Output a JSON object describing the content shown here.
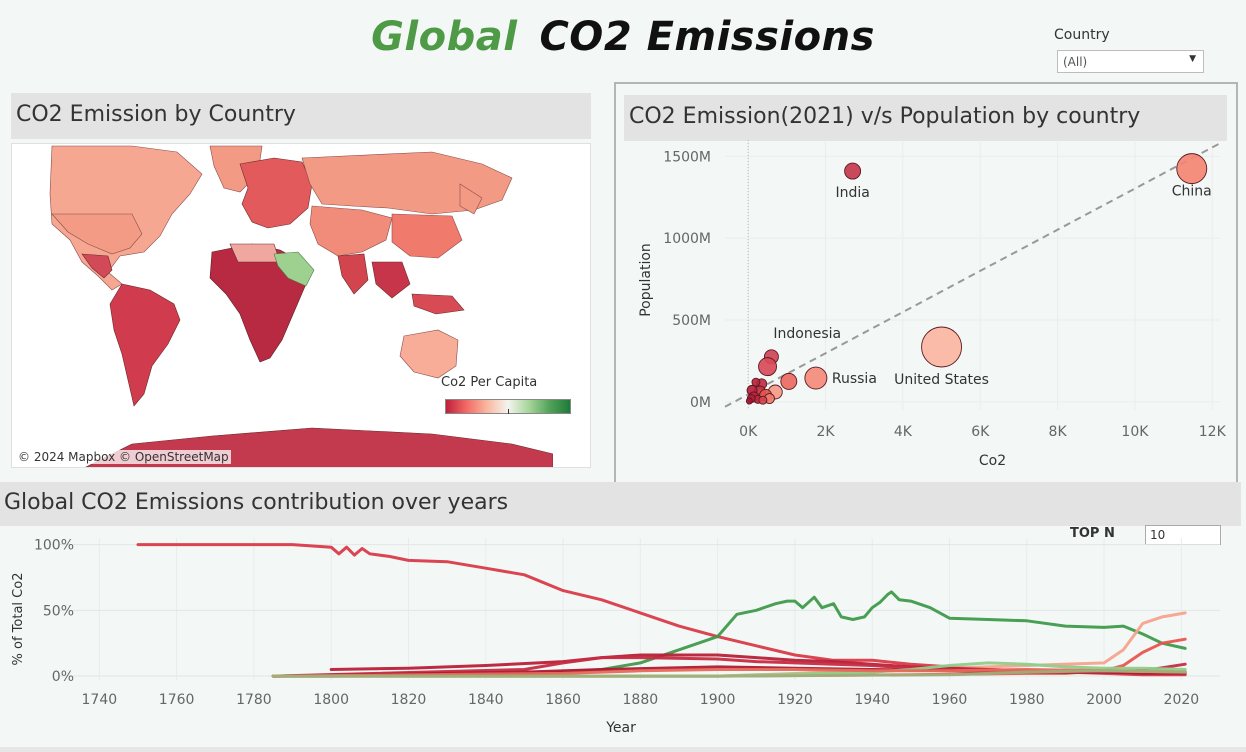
{
  "header": {
    "title_part1": "Global",
    "title_part2": "CO2 Emissions",
    "country_filter_label": "Country",
    "country_filter_value": "(All)"
  },
  "map_panel": {
    "title": "CO2 Emission by Country",
    "attribution": "© 2024 Mapbox © OpenStreetMap",
    "legend_title": "Co2 Per Capita"
  },
  "scatter_panel": {
    "title": "CO2 Emission(2021) v/s Population by country"
  },
  "line_panel": {
    "title": "Global CO2 Emissions contribution over years",
    "topn_label": "TOP N",
    "topn_value": "10"
  },
  "colors": {
    "accent_green": "#4f9a47",
    "dark_red": "#c0203a",
    "salmon": "#f9b8a0",
    "dark_green": "#2e7d3a"
  },
  "chart_data": [
    {
      "type": "scatter",
      "xlabel": "Co2",
      "ylabel": "Population",
      "xlim": [
        -600,
        12200
      ],
      "ylim": [
        -50,
        1600
      ],
      "x_ticks": [
        0,
        2000,
        4000,
        6000,
        8000,
        10000,
        12000
      ],
      "x_tick_labels": [
        "0K",
        "2K",
        "4K",
        "6K",
        "8K",
        "10K",
        "12K"
      ],
      "y_ticks": [
        0,
        500,
        1000,
        1500
      ],
      "y_tick_labels": [
        "0M",
        "500M",
        "1000M",
        "1500M"
      ],
      "trend_line": {
        "x": [
          -600,
          12200
        ],
        "y": [
          -30,
          1580
        ]
      },
      "points": [
        {
          "label": "China",
          "x": 11470,
          "y": 1425,
          "size": 15,
          "color": "#f48672"
        },
        {
          "label": "United States",
          "x": 5000,
          "y": 335,
          "size": 20,
          "color": "#fbb6a2"
        },
        {
          "label": "India",
          "x": 2700,
          "y": 1410,
          "size": 8,
          "color": "#c7384e"
        },
        {
          "label": "Russia",
          "x": 1750,
          "y": 145,
          "size": 11,
          "color": "#f58a79"
        },
        {
          "label": "Indonesia",
          "x": 600,
          "y": 275,
          "size": 7,
          "color": "#cf4456"
        },
        {
          "label": "",
          "x": 500,
          "y": 215,
          "size": 9,
          "color": "#d94a5a"
        },
        {
          "label": "",
          "x": 1050,
          "y": 125,
          "size": 8,
          "color": "#ec6a62"
        },
        {
          "label": "",
          "x": 350,
          "y": 110,
          "size": 5,
          "color": "#c22d44"
        },
        {
          "label": "",
          "x": 200,
          "y": 120,
          "size": 4,
          "color": "#b8223c"
        },
        {
          "label": "",
          "x": 700,
          "y": 60,
          "size": 7,
          "color": "#f59a87"
        },
        {
          "label": "",
          "x": 300,
          "y": 60,
          "size": 6,
          "color": "#c83246"
        },
        {
          "label": "",
          "x": 100,
          "y": 70,
          "size": 5,
          "color": "#b91e3a"
        },
        {
          "label": "",
          "x": 450,
          "y": 40,
          "size": 6,
          "color": "#e2564f"
        },
        {
          "label": "",
          "x": 150,
          "y": 30,
          "size": 5,
          "color": "#bd2340"
        },
        {
          "label": "",
          "x": 550,
          "y": 20,
          "size": 5,
          "color": "#f07a6c"
        },
        {
          "label": "",
          "x": 250,
          "y": 15,
          "size": 4,
          "color": "#c12a41"
        },
        {
          "label": "",
          "x": 80,
          "y": 20,
          "size": 4,
          "color": "#b31b37"
        },
        {
          "label": "",
          "x": 380,
          "y": 10,
          "size": 4,
          "color": "#d6434f"
        },
        {
          "label": "",
          "x": 30,
          "y": 5,
          "size": 3,
          "color": "#a81632"
        }
      ]
    },
    {
      "type": "line",
      "xlabel": "Year",
      "ylabel": "% of Total Co2",
      "xlim": [
        1735,
        2030
      ],
      "ylim": [
        -3,
        105
      ],
      "x_ticks": [
        1740,
        1760,
        1780,
        1800,
        1820,
        1840,
        1860,
        1880,
        1900,
        1920,
        1940,
        1960,
        1980,
        2000,
        2020
      ],
      "y_ticks": [
        0,
        50,
        100
      ],
      "y_tick_labels": [
        "0%",
        "50%",
        "100%"
      ],
      "series": [
        {
          "color": "#d93a48",
          "x": [
            1750,
            1790,
            1800,
            1802,
            1804,
            1806,
            1808,
            1810,
            1815,
            1820,
            1830,
            1840,
            1850,
            1860,
            1870,
            1880,
            1890,
            1900,
            1910,
            1920,
            1930,
            1940,
            1950,
            1960,
            1970,
            1980,
            1990,
            2000,
            2010,
            2021
          ],
          "y": [
            100,
            100,
            98,
            93,
            98,
            92,
            97,
            93,
            91,
            88,
            87,
            82,
            77,
            65,
            58,
            48,
            38,
            30,
            23,
            16,
            12,
            12,
            9,
            7,
            5,
            4,
            3,
            2,
            1,
            1
          ]
        },
        {
          "color": "#3f9a4a",
          "x": [
            1785,
            1800,
            1830,
            1850,
            1860,
            1870,
            1880,
            1890,
            1900,
            1905,
            1910,
            1915,
            1918,
            1920,
            1922,
            1925,
            1927,
            1930,
            1932,
            1935,
            1938,
            1940,
            1942,
            1944,
            1945,
            1947,
            1950,
            1955,
            1960,
            1970,
            1980,
            1990,
            2000,
            2005,
            2010,
            2015,
            2021
          ],
          "y": [
            0,
            0,
            1,
            2,
            3,
            5,
            10,
            20,
            30,
            47,
            50,
            55,
            57,
            57,
            52,
            60,
            52,
            55,
            45,
            43,
            45,
            52,
            56,
            62,
            64,
            58,
            57,
            52,
            44,
            43,
            42,
            38,
            37,
            38,
            32,
            25,
            21
          ]
        },
        {
          "color": "#e8564e",
          "x": [
            1785,
            1900,
            1950,
            1980,
            1990,
            2000,
            2005,
            2010,
            2015,
            2021
          ],
          "y": [
            0,
            0,
            1,
            2,
            2,
            4,
            8,
            18,
            25,
            28
          ]
        },
        {
          "color": "#f6a38e",
          "x": [
            1785,
            1900,
            2000,
            2005,
            2010,
            2015,
            2017,
            2021
          ],
          "y": [
            0,
            0,
            10,
            20,
            40,
            45,
            46,
            48
          ]
        },
        {
          "color": "#b82038",
          "x": [
            1800,
            1820,
            1840,
            1860,
            1870,
            1880,
            1900,
            1910,
            1920,
            1930,
            1940,
            1950,
            1960,
            1970,
            1980,
            1990,
            2000,
            2010,
            2021
          ],
          "y": [
            5,
            6,
            8,
            11,
            14,
            16,
            16,
            14,
            12,
            11,
            9,
            7,
            6,
            5,
            4,
            3,
            3,
            2,
            2
          ]
        },
        {
          "color": "#c62c42",
          "x": [
            1785,
            1850,
            1860,
            1870,
            1880,
            1900,
            1910,
            1920,
            1930,
            1940,
            1950,
            1960,
            1970,
            1980,
            1990,
            2000,
            2010,
            2021
          ],
          "y": [
            0,
            5,
            10,
            14,
            14,
            13,
            11,
            10,
            9,
            8,
            6,
            5,
            4,
            3,
            3,
            3,
            4,
            9
          ]
        },
        {
          "color": "#b01a33",
          "x": [
            1785,
            1850,
            1870,
            1900,
            1920,
            1940,
            1960,
            1980,
            2000,
            2021
          ],
          "y": [
            0,
            3,
            5,
            7,
            6,
            5,
            4,
            3,
            3,
            3
          ]
        },
        {
          "color": "#8fce8a",
          "x": [
            1785,
            1900,
            1940,
            1950,
            1960,
            1970,
            1980,
            1990,
            2000,
            2010,
            2021
          ],
          "y": [
            0,
            0,
            3,
            5,
            8,
            10,
            9,
            7,
            6,
            6,
            5
          ]
        },
        {
          "color": "#e66a5c",
          "x": [
            1785,
            1860,
            1880,
            1900,
            1920,
            1940,
            1960,
            1980,
            2000,
            2021
          ],
          "y": [
            0,
            2,
            4,
            5,
            5,
            4,
            4,
            5,
            4,
            3
          ]
        },
        {
          "color": "#9fb07a",
          "x": [
            1785,
            1900,
            1960,
            1980,
            2000,
            2021
          ],
          "y": [
            0,
            0,
            1,
            3,
            4,
            3
          ]
        }
      ]
    }
  ]
}
